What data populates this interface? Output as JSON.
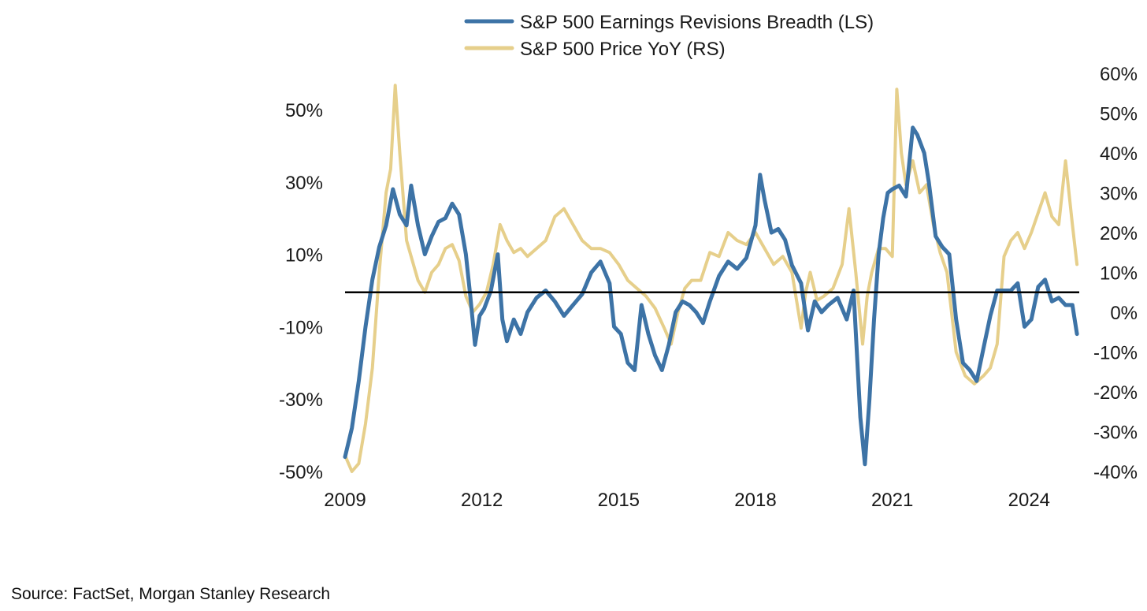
{
  "chart_data": {
    "type": "line",
    "title": "",
    "legend_position": "top-center",
    "x_ticks": [
      2009,
      2012,
      2015,
      2018,
      2021,
      2024
    ],
    "x_tick_labels": [
      "2009",
      "2012",
      "2015",
      "2018",
      "2021",
      "2024"
    ],
    "xlim": [
      2009,
      2025.1
    ],
    "left_axis": {
      "ylim": [
        -50,
        60
      ],
      "ticks": [
        -50,
        -30,
        -10,
        10,
        30,
        50
      ],
      "tick_labels": [
        "-50%",
        "-30%",
        "-10%",
        "10%",
        "30%",
        "50%"
      ]
    },
    "right_axis": {
      "ylim": [
        -40,
        60
      ],
      "ticks": [
        -40,
        -30,
        -20,
        -10,
        0,
        10,
        20,
        30,
        40,
        50,
        60
      ],
      "tick_labels": [
        "-40%",
        "-30%",
        "-20%",
        "-10%",
        "0%",
        "10%",
        "20%",
        "30%",
        "40%",
        "50%",
        "60%"
      ]
    },
    "reference_line": {
      "axis": "right",
      "value": 5,
      "color": "#000000"
    },
    "series": [
      {
        "name": "S&P 500 Earnings Revisions Breadth (LS)",
        "axis": "left",
        "color": "#3d73a6",
        "x": [
          2009.0,
          2009.15,
          2009.3,
          2009.45,
          2009.6,
          2009.75,
          2009.9,
          2010.05,
          2010.2,
          2010.35,
          2010.45,
          2010.6,
          2010.75,
          2010.9,
          2011.05,
          2011.2,
          2011.35,
          2011.5,
          2011.65,
          2011.75,
          2011.85,
          2011.95,
          2012.05,
          2012.2,
          2012.35,
          2012.45,
          2012.55,
          2012.7,
          2012.85,
          2013.0,
          2013.2,
          2013.4,
          2013.6,
          2013.8,
          2014.0,
          2014.2,
          2014.4,
          2014.6,
          2014.8,
          2014.9,
          2015.05,
          2015.2,
          2015.35,
          2015.5,
          2015.65,
          2015.8,
          2015.95,
          2016.1,
          2016.25,
          2016.4,
          2016.55,
          2016.7,
          2016.85,
          2017.0,
          2017.2,
          2017.4,
          2017.6,
          2017.8,
          2018.0,
          2018.1,
          2018.2,
          2018.35,
          2018.5,
          2018.65,
          2018.8,
          2019.0,
          2019.15,
          2019.3,
          2019.45,
          2019.6,
          2019.8,
          2020.0,
          2020.15,
          2020.3,
          2020.4,
          2020.5,
          2020.6,
          2020.7,
          2020.8,
          2020.9,
          2021.0,
          2021.15,
          2021.3,
          2021.45,
          2021.55,
          2021.7,
          2021.8,
          2021.95,
          2022.1,
          2022.25,
          2022.4,
          2022.55,
          2022.7,
          2022.85,
          2023.0,
          2023.15,
          2023.3,
          2023.45,
          2023.6,
          2023.75,
          2023.9,
          2024.05,
          2024.2,
          2024.35,
          2024.5,
          2024.65,
          2024.8,
          2024.95,
          2025.05
        ],
        "values": [
          -46,
          -38,
          -25,
          -10,
          3,
          12,
          18,
          28,
          21,
          18,
          29,
          18,
          10,
          15,
          19,
          20,
          24,
          21,
          10,
          -2,
          -15,
          -7,
          -5,
          0,
          10,
          -8,
          -14,
          -8,
          -12,
          -6,
          -2,
          0,
          -3,
          -7,
          -4,
          -1,
          5,
          8,
          2,
          -10,
          -12,
          -20,
          -22,
          -4,
          -12,
          -18,
          -22,
          -15,
          -6,
          -3,
          -4,
          -6,
          -9,
          -3,
          4,
          8,
          6,
          9,
          18,
          32,
          25,
          16,
          17,
          14,
          7,
          2,
          -11,
          -3,
          -6,
          -4,
          -2,
          -8,
          0,
          -35,
          -48,
          -30,
          -8,
          10,
          20,
          27,
          28,
          29,
          26,
          45,
          43,
          38,
          30,
          15,
          12,
          10,
          -8,
          -20,
          -22,
          -25,
          -16,
          -7,
          0,
          0,
          0,
          2,
          -10,
          -8,
          1,
          3,
          -3,
          -2,
          -4,
          -4,
          -12
        ]
      },
      {
        "name": "S&P 500 Price YoY (RS)",
        "axis": "right",
        "color": "#e6cf8b",
        "x": [
          2009.0,
          2009.15,
          2009.3,
          2009.45,
          2009.6,
          2009.75,
          2009.9,
          2010.0,
          2010.1,
          2010.2,
          2010.35,
          2010.45,
          2010.6,
          2010.75,
          2010.9,
          2011.05,
          2011.2,
          2011.35,
          2011.5,
          2011.65,
          2011.8,
          2011.95,
          2012.1,
          2012.25,
          2012.4,
          2012.55,
          2012.7,
          2012.85,
          2013.0,
          2013.2,
          2013.4,
          2013.6,
          2013.8,
          2014.0,
          2014.2,
          2014.4,
          2014.6,
          2014.8,
          2015.0,
          2015.2,
          2015.4,
          2015.6,
          2015.8,
          2016.0,
          2016.15,
          2016.3,
          2016.45,
          2016.6,
          2016.8,
          2017.0,
          2017.2,
          2017.4,
          2017.6,
          2017.8,
          2018.0,
          2018.2,
          2018.4,
          2018.6,
          2018.8,
          2019.0,
          2019.1,
          2019.2,
          2019.35,
          2019.5,
          2019.7,
          2019.9,
          2020.05,
          2020.2,
          2020.35,
          2020.45,
          2020.55,
          2020.7,
          2020.85,
          2021.0,
          2021.1,
          2021.2,
          2021.3,
          2021.45,
          2021.6,
          2021.75,
          2021.9,
          2022.05,
          2022.2,
          2022.4,
          2022.6,
          2022.8,
          2023.0,
          2023.15,
          2023.3,
          2023.45,
          2023.6,
          2023.75,
          2023.9,
          2024.05,
          2024.2,
          2024.35,
          2024.5,
          2024.65,
          2024.8,
          2024.95,
          2025.05
        ],
        "values": [
          -36,
          -40,
          -38,
          -28,
          -14,
          10,
          30,
          36,
          57,
          40,
          18,
          14,
          8,
          5,
          10,
          12,
          16,
          17,
          13,
          4,
          0,
          2,
          5,
          12,
          22,
          18,
          15,
          16,
          14,
          16,
          18,
          24,
          26,
          22,
          18,
          16,
          16,
          15,
          12,
          8,
          6,
          4,
          1,
          -4,
          -8,
          0,
          6,
          8,
          8,
          15,
          14,
          20,
          18,
          17,
          20,
          16,
          12,
          14,
          10,
          -4,
          5,
          10,
          3,
          4,
          6,
          12,
          26,
          10,
          -8,
          4,
          10,
          16,
          16,
          14,
          56,
          40,
          32,
          38,
          30,
          32,
          22,
          15,
          10,
          -10,
          -16,
          -18,
          -16,
          -14,
          -8,
          14,
          18,
          20,
          16,
          20,
          25,
          30,
          24,
          22,
          38,
          22,
          12
        ]
      }
    ]
  },
  "legend": [
    {
      "label": "S&P 500 Earnings Revisions Breadth (LS)",
      "color": "#3d73a6"
    },
    {
      "label": "S&P 500 Price YoY (RS)",
      "color": "#e6cf8b"
    }
  ],
  "source": "Source: FactSet, Morgan Stanley Research"
}
